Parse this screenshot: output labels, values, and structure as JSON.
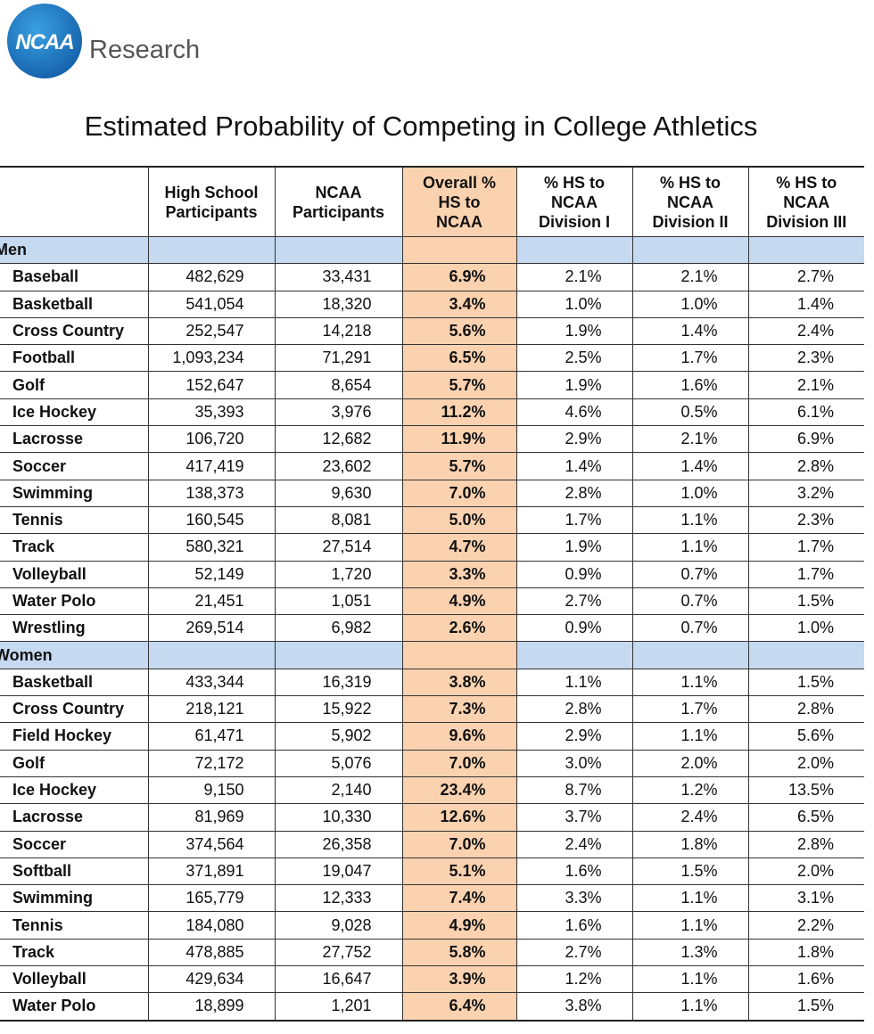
{
  "header": {
    "logo": "NCAA",
    "brand": "Research"
  },
  "title": "Estimated Probability of Competing in College Athletics",
  "table": {
    "columns": [
      [
        "High School",
        "Participants"
      ],
      [
        "NCAA",
        "Participants"
      ],
      [
        "Overall %",
        "HS to",
        "NCAA"
      ],
      [
        "% HS to",
        "NCAA",
        "Division I"
      ],
      [
        "% HS to",
        "NCAA",
        "Division II"
      ],
      [
        "% HS to",
        "NCAA",
        "Division III"
      ]
    ],
    "sections": [
      {
        "name": "Men",
        "rows": [
          [
            "Baseball",
            "482,629",
            "33,431",
            "6.9%",
            "2.1%",
            "2.1%",
            "2.7%"
          ],
          [
            "Basketball",
            "541,054",
            "18,320",
            "3.4%",
            "1.0%",
            "1.0%",
            "1.4%"
          ],
          [
            "Cross Country",
            "252,547",
            "14,218",
            "5.6%",
            "1.9%",
            "1.4%",
            "2.4%"
          ],
          [
            "Football",
            "1,093,234",
            "71,291",
            "6.5%",
            "2.5%",
            "1.7%",
            "2.3%"
          ],
          [
            "Golf",
            "152,647",
            "8,654",
            "5.7%",
            "1.9%",
            "1.6%",
            "2.1%"
          ],
          [
            "Ice Hockey",
            "35,393",
            "3,976",
            "11.2%",
            "4.6%",
            "0.5%",
            "6.1%"
          ],
          [
            "Lacrosse",
            "106,720",
            "12,682",
            "11.9%",
            "2.9%",
            "2.1%",
            "6.9%"
          ],
          [
            "Soccer",
            "417,419",
            "23,602",
            "5.7%",
            "1.4%",
            "1.4%",
            "2.8%"
          ],
          [
            "Swimming",
            "138,373",
            "9,630",
            "7.0%",
            "2.8%",
            "1.0%",
            "3.2%"
          ],
          [
            "Tennis",
            "160,545",
            "8,081",
            "5.0%",
            "1.7%",
            "1.1%",
            "2.3%"
          ],
          [
            "Track",
            "580,321",
            "27,514",
            "4.7%",
            "1.9%",
            "1.1%",
            "1.7%"
          ],
          [
            "Volleyball",
            "52,149",
            "1,720",
            "3.3%",
            "0.9%",
            "0.7%",
            "1.7%"
          ],
          [
            "Water Polo",
            "21,451",
            "1,051",
            "4.9%",
            "2.7%",
            "0.7%",
            "1.5%"
          ],
          [
            "Wrestling",
            "269,514",
            "6,982",
            "2.6%",
            "0.9%",
            "0.7%",
            "1.0%"
          ]
        ]
      },
      {
        "name": "Women",
        "rows": [
          [
            "Basketball",
            "433,344",
            "16,319",
            "3.8%",
            "1.1%",
            "1.1%",
            "1.5%"
          ],
          [
            "Cross Country",
            "218,121",
            "15,922",
            "7.3%",
            "2.8%",
            "1.7%",
            "2.8%"
          ],
          [
            "Field Hockey",
            "61,471",
            "5,902",
            "9.6%",
            "2.9%",
            "1.1%",
            "5.6%"
          ],
          [
            "Golf",
            "72,172",
            "5,076",
            "7.0%",
            "3.0%",
            "2.0%",
            "2.0%"
          ],
          [
            "Ice Hockey",
            "9,150",
            "2,140",
            "23.4%",
            "8.7%",
            "1.2%",
            "13.5%"
          ],
          [
            "Lacrosse",
            "81,969",
            "10,330",
            "12.6%",
            "3.7%",
            "2.4%",
            "6.5%"
          ],
          [
            "Soccer",
            "374,564",
            "26,358",
            "7.0%",
            "2.4%",
            "1.8%",
            "2.8%"
          ],
          [
            "Softball",
            "371,891",
            "19,047",
            "5.1%",
            "1.6%",
            "1.5%",
            "2.0%"
          ],
          [
            "Swimming",
            "165,779",
            "12,333",
            "7.4%",
            "3.3%",
            "1.1%",
            "3.1%"
          ],
          [
            "Tennis",
            "184,080",
            "9,028",
            "4.9%",
            "1.6%",
            "1.1%",
            "2.2%"
          ],
          [
            "Track",
            "478,885",
            "27,752",
            "5.8%",
            "2.7%",
            "1.3%",
            "1.8%"
          ],
          [
            "Volleyball",
            "429,634",
            "16,647",
            "3.9%",
            "1.2%",
            "1.1%",
            "1.6%"
          ],
          [
            "Water Polo",
            "18,899",
            "1,201",
            "6.4%",
            "3.8%",
            "1.1%",
            "1.5%"
          ]
        ]
      }
    ]
  }
}
